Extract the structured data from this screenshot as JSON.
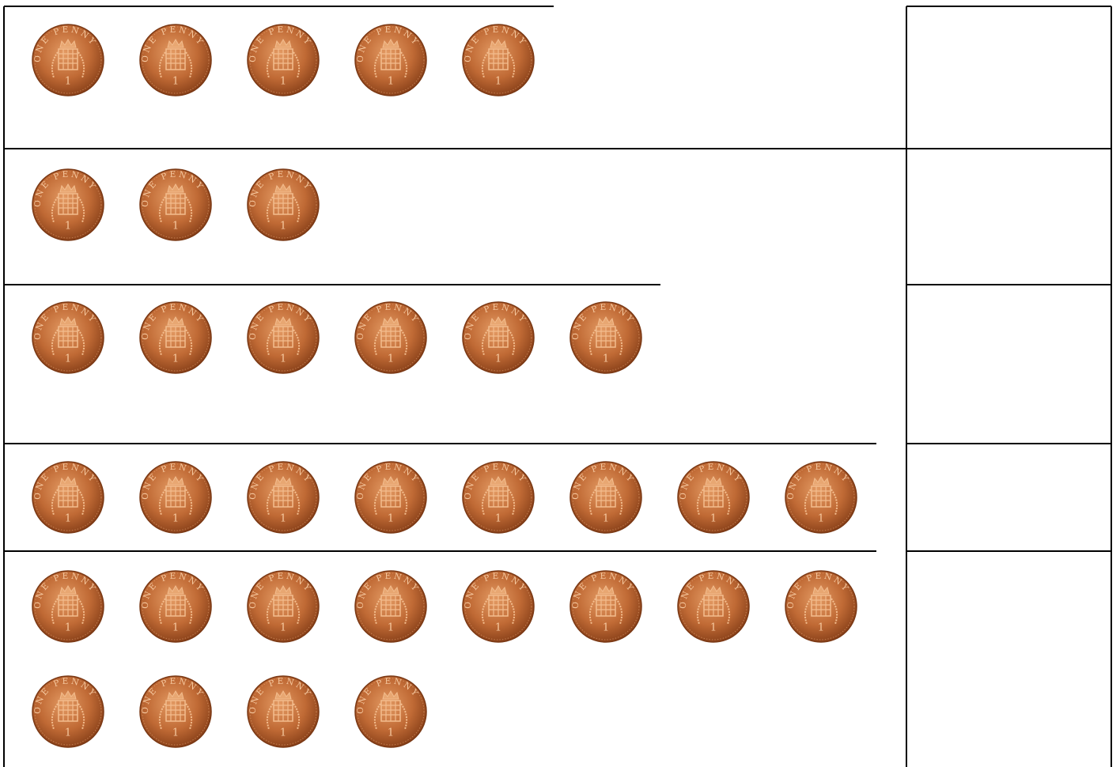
{
  "worksheet": {
    "coin": {
      "legend": "ONE PENNY",
      "numeral": "1"
    },
    "rows": [
      {
        "coins": 5
      },
      {
        "coins": 3
      },
      {
        "coins": 6
      },
      {
        "coins": 8
      },
      {
        "coins": 12
      }
    ]
  }
}
